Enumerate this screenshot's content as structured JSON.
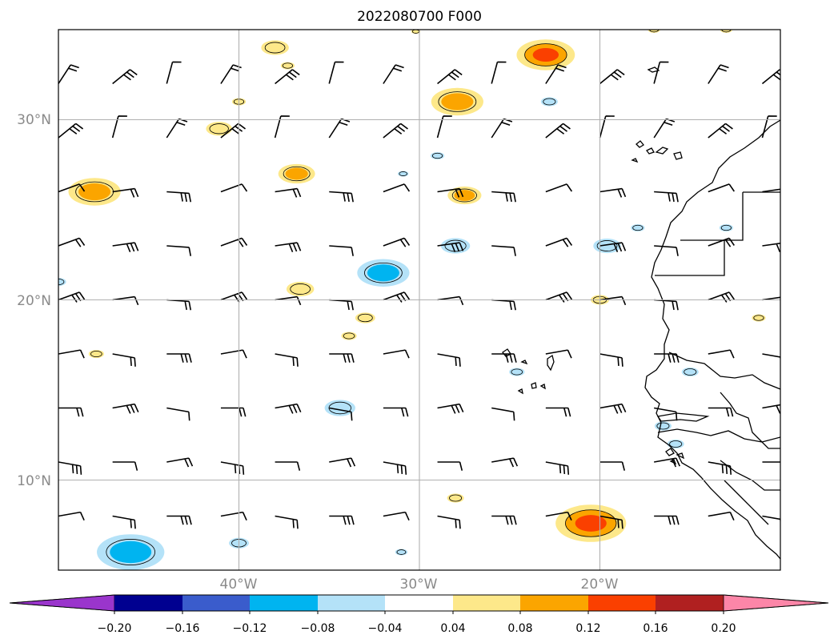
{
  "title": "2022080700 F000",
  "map": {
    "lon_range": [
      -50,
      -10
    ],
    "lat_range": [
      5,
      35
    ],
    "lat_ticks": [
      {
        "value": 30,
        "label": "30°N"
      },
      {
        "value": 20,
        "label": "20°N"
      },
      {
        "value": 10,
        "label": "10°N"
      }
    ],
    "lon_ticks": [
      {
        "value": -40,
        "label": "40°W"
      },
      {
        "value": -30,
        "label": "30°W"
      },
      {
        "value": -20,
        "label": "20°W"
      }
    ],
    "grid": true
  },
  "colorbar": {
    "colors": [
      "#9a35cc",
      "#000090",
      "#3a5ccc",
      "#00b4f0",
      "#b4e2f8",
      "#ffffff",
      "#fde88a",
      "#fba500",
      "#fa4000",
      "#b02020",
      "#fc86a8"
    ],
    "tick_labels": [
      "−0.20",
      "−0.16",
      "−0.12",
      "−0.08",
      "−0.04",
      "0.04",
      "0.08",
      "0.12",
      "0.16",
      "0.20"
    ],
    "extend": "both"
  },
  "contours": [
    {
      "lon": -38.0,
      "lat": 34.0,
      "level": 0.04,
      "size": 0.9
    },
    {
      "lon": -37.3,
      "lat": 33.0,
      "level": 0.04,
      "size": 0.45
    },
    {
      "lon": -23.0,
      "lat": 33.6,
      "level": 0.12,
      "size": 1.9
    },
    {
      "lon": -30.2,
      "lat": 34.9,
      "level": 0.04,
      "size": 0.3
    },
    {
      "lon": -17.0,
      "lat": 35.0,
      "level": 0.04,
      "size": 0.4
    },
    {
      "lon": -13.0,
      "lat": 35.0,
      "level": 0.04,
      "size": 0.4
    },
    {
      "lon": -40.0,
      "lat": 31.0,
      "level": 0.04,
      "size": 0.45
    },
    {
      "lon": -27.9,
      "lat": 31.0,
      "level": 0.08,
      "size": 1.7
    },
    {
      "lon": -22.8,
      "lat": 31.0,
      "level": -0.04,
      "size": 0.55
    },
    {
      "lon": -41.1,
      "lat": 29.5,
      "level": 0.04,
      "size": 0.85
    },
    {
      "lon": -48.0,
      "lat": 26.0,
      "level": 0.08,
      "size": 1.7
    },
    {
      "lon": -36.8,
      "lat": 27.0,
      "level": 0.08,
      "size": 1.2
    },
    {
      "lon": -30.9,
      "lat": 27.0,
      "level": -0.04,
      "size": 0.35
    },
    {
      "lon": -29.0,
      "lat": 28.0,
      "level": -0.04,
      "size": 0.45
    },
    {
      "lon": -27.5,
      "lat": 25.8,
      "level": 0.08,
      "size": 1.1
    },
    {
      "lon": -28.0,
      "lat": 23.0,
      "level": -0.04,
      "size": 0.95
    },
    {
      "lon": -19.6,
      "lat": 23.0,
      "level": -0.04,
      "size": 0.9
    },
    {
      "lon": -17.9,
      "lat": 24.0,
      "level": -0.04,
      "size": 0.45
    },
    {
      "lon": -13.0,
      "lat": 24.0,
      "level": -0.04,
      "size": 0.45
    },
    {
      "lon": -32.0,
      "lat": 21.5,
      "level": -0.08,
      "size": 1.7
    },
    {
      "lon": -50.0,
      "lat": 21.0,
      "level": -0.04,
      "size": 0.5
    },
    {
      "lon": -36.6,
      "lat": 20.6,
      "level": 0.04,
      "size": 0.9
    },
    {
      "lon": -20.0,
      "lat": 20.0,
      "level": 0.04,
      "size": 0.6
    },
    {
      "lon": -33.0,
      "lat": 19.0,
      "level": 0.04,
      "size": 0.65
    },
    {
      "lon": -33.9,
      "lat": 18.0,
      "level": 0.04,
      "size": 0.5
    },
    {
      "lon": -11.2,
      "lat": 19.0,
      "level": 0.04,
      "size": 0.45
    },
    {
      "lon": -47.9,
      "lat": 17.0,
      "level": 0.04,
      "size": 0.5
    },
    {
      "lon": -24.6,
      "lat": 16.0,
      "level": -0.04,
      "size": 0.5
    },
    {
      "lon": -15.0,
      "lat": 16.0,
      "level": -0.04,
      "size": 0.55
    },
    {
      "lon": -34.4,
      "lat": 14.0,
      "level": -0.04,
      "size": 1.0
    },
    {
      "lon": -15.8,
      "lat": 12.0,
      "level": -0.04,
      "size": 0.55
    },
    {
      "lon": -16.5,
      "lat": 13.0,
      "level": -0.04,
      "size": 0.55
    },
    {
      "lon": -28.0,
      "lat": 9.0,
      "level": 0.04,
      "size": 0.55
    },
    {
      "lon": -20.5,
      "lat": 7.6,
      "level": 0.12,
      "size": 2.3
    },
    {
      "lon": -40.0,
      "lat": 6.5,
      "level": -0.04,
      "size": 0.65
    },
    {
      "lon": -46.0,
      "lat": 6.0,
      "level": -0.08,
      "size": 2.2
    },
    {
      "lon": -31.0,
      "lat": 6.0,
      "level": -0.04,
      "size": 0.4
    }
  ],
  "wind_barbs": {
    "lons": [
      -50,
      -47,
      -44,
      -41,
      -38,
      -35,
      -32,
      -29,
      -26,
      -23,
      -20,
      -17,
      -14,
      -11
    ],
    "lats": [
      35,
      32,
      29,
      26,
      23,
      20,
      17,
      14,
      11,
      8
    ]
  }
}
